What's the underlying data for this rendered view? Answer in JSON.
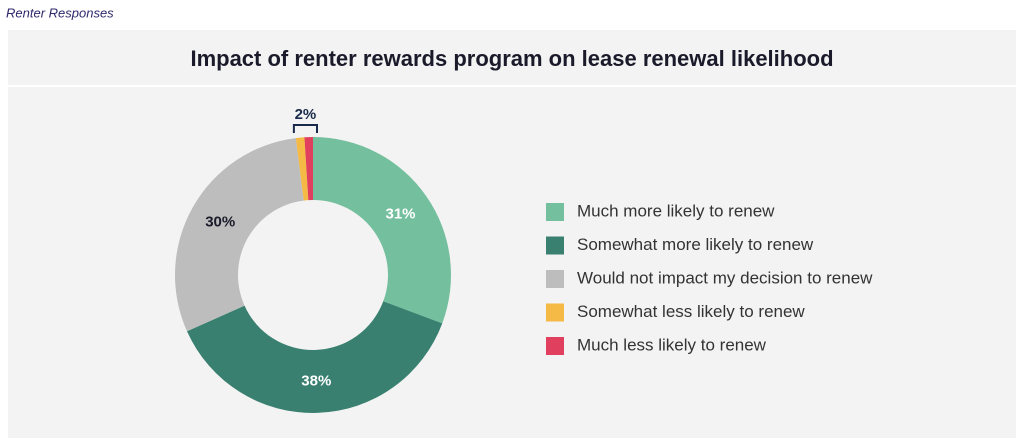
{
  "header": "Renter Responses",
  "chart_data": {
    "type": "donut",
    "title": "Impact of renter rewards program on lease renewal likelihood",
    "categories": [
      "Much more likely to renew",
      "Somewhat more likely to renew",
      "Would not impact my decision to renew",
      "Somewhat less likely to renew",
      "Much less likely to renew"
    ],
    "values": [
      31,
      38,
      30,
      1,
      1
    ],
    "value_labels": [
      "31%",
      "38%",
      "30%",
      null,
      null
    ],
    "colors": [
      "#74bf9d",
      "#3a8070",
      "#bdbdbd",
      "#f5b945",
      "#e0405d"
    ],
    "annotations": [
      {
        "value": 2,
        "label": "2%"
      }
    ],
    "legend": "right"
  }
}
